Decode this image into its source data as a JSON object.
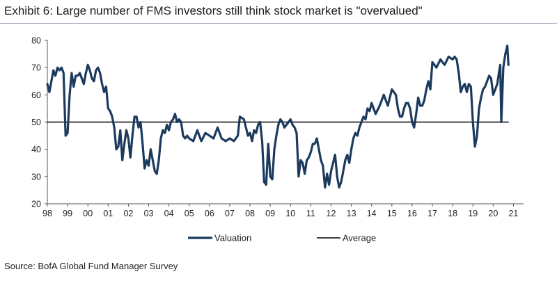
{
  "header": {
    "title": "Exhibit 6: Large number of FMS investors still think stock market is \"overvalued\""
  },
  "footer": {
    "source": "Source: BofA Global Fund Manager Survey"
  },
  "chart_data": {
    "type": "line",
    "title": "Exhibit 6: Large number of FMS investors still think stock market is \"overvalued\"",
    "xlabel": "",
    "ylabel": "",
    "xlim": [
      1998,
      2021.5
    ],
    "ylim": [
      20,
      80
    ],
    "y_ticks": [
      20,
      30,
      40,
      50,
      60,
      70,
      80
    ],
    "x_tick_labels": [
      "98",
      "99",
      "00",
      "01",
      "02",
      "03",
      "04",
      "05",
      "06",
      "07",
      "08",
      "09",
      "10",
      "11",
      "12",
      "13",
      "14",
      "15",
      "16",
      "17",
      "18",
      "19",
      "20",
      "21"
    ],
    "grid": false,
    "legend_position": "bottom",
    "colors": {
      "valuation": "#1c3a5e",
      "average": "#000000"
    },
    "series": [
      {
        "name": "Valuation",
        "x": [
          1998.0,
          1998.1,
          1998.2,
          1998.3,
          1998.4,
          1998.5,
          1998.6,
          1998.7,
          1998.8,
          1998.9,
          1999.0,
          1999.1,
          1999.2,
          1999.3,
          1999.4,
          1999.5,
          1999.6,
          1999.7,
          1999.8,
          1999.9,
          2000.0,
          2000.1,
          2000.2,
          2000.3,
          2000.4,
          2000.5,
          2000.6,
          2000.7,
          2000.8,
          2000.9,
          2001.0,
          2001.1,
          2001.2,
          2001.3,
          2001.4,
          2001.5,
          2001.6,
          2001.7,
          2001.8,
          2001.9,
          2002.0,
          2002.1,
          2002.2,
          2002.3,
          2002.4,
          2002.5,
          2002.6,
          2002.7,
          2002.8,
          2002.9,
          2003.0,
          2003.1,
          2003.2,
          2003.3,
          2003.4,
          2003.5,
          2003.6,
          2003.7,
          2003.8,
          2003.9,
          2004.0,
          2004.1,
          2004.2,
          2004.3,
          2004.4,
          2004.5,
          2004.6,
          2004.7,
          2004.8,
          2004.9,
          2005.0,
          2005.2,
          2005.4,
          2005.6,
          2005.8,
          2006.0,
          2006.2,
          2006.4,
          2006.6,
          2006.8,
          2007.0,
          2007.2,
          2007.4,
          2007.5,
          2007.7,
          2007.9,
          2008.0,
          2008.1,
          2008.2,
          2008.3,
          2008.4,
          2008.5,
          2008.6,
          2008.7,
          2008.8,
          2008.9,
          2009.0,
          2009.1,
          2009.2,
          2009.3,
          2009.4,
          2009.5,
          2009.6,
          2009.7,
          2009.8,
          2009.9,
          2010.0,
          2010.1,
          2010.2,
          2010.3,
          2010.4,
          2010.5,
          2010.6,
          2010.7,
          2010.8,
          2010.9,
          2011.0,
          2011.1,
          2011.2,
          2011.3,
          2011.4,
          2011.5,
          2011.6,
          2011.7,
          2011.8,
          2011.9,
          2012.0,
          2012.1,
          2012.2,
          2012.3,
          2012.4,
          2012.5,
          2012.6,
          2012.7,
          2012.8,
          2012.9,
          2013.0,
          2013.1,
          2013.2,
          2013.3,
          2013.4,
          2013.5,
          2013.6,
          2013.7,
          2013.8,
          2013.9,
          2014.0,
          2014.2,
          2014.4,
          2014.6,
          2014.8,
          2015.0,
          2015.1,
          2015.2,
          2015.3,
          2015.4,
          2015.5,
          2015.6,
          2015.7,
          2015.8,
          2015.9,
          2016.0,
          2016.1,
          2016.2,
          2016.3,
          2016.4,
          2016.5,
          2016.6,
          2016.7,
          2016.8,
          2016.9,
          2017.0,
          2017.2,
          2017.4,
          2017.6,
          2017.8,
          2018.0,
          2018.1,
          2018.2,
          2018.3,
          2018.4,
          2018.5,
          2018.6,
          2018.7,
          2018.8,
          2018.9,
          2019.0,
          2019.1,
          2019.2,
          2019.3,
          2019.4,
          2019.5,
          2019.6,
          2019.7,
          2019.8,
          2019.9,
          2020.0,
          2020.1,
          2020.2,
          2020.3,
          2020.35,
          2020.4,
          2020.5,
          2020.6,
          2020.7,
          2020.75
        ],
        "y": [
          64,
          61,
          65,
          69,
          67,
          70,
          69,
          70,
          68,
          45,
          46,
          60,
          68,
          63,
          67,
          67,
          68,
          66,
          64,
          68,
          71,
          69,
          66,
          65,
          69,
          70,
          68,
          64,
          61,
          63,
          55,
          54,
          52,
          48,
          40,
          41,
          47,
          36,
          42,
          47,
          44,
          37,
          45,
          52,
          52,
          48,
          50,
          42,
          33,
          36,
          34,
          40,
          36,
          32,
          31,
          36,
          44,
          47,
          46,
          49,
          47,
          50,
          51,
          53,
          50,
          51,
          50,
          45,
          44,
          45,
          44,
          43,
          47,
          43,
          46,
          45,
          44,
          48,
          44,
          43,
          44,
          43,
          45,
          52,
          51,
          45,
          46,
          43,
          47,
          46,
          49,
          50,
          43,
          28,
          27,
          42,
          30,
          29,
          40,
          45,
          49,
          51,
          50,
          48,
          49,
          50,
          51,
          49,
          48,
          46,
          30,
          36,
          35,
          31,
          36,
          37,
          39,
          42,
          42,
          44,
          40,
          36,
          34,
          26,
          31,
          27,
          32,
          35,
          38,
          30,
          26,
          28,
          32,
          36,
          38,
          35,
          40,
          44,
          46,
          45,
          48,
          50,
          52,
          51,
          55,
          54,
          57,
          53,
          56,
          60,
          56,
          62,
          61,
          60,
          55,
          52,
          52,
          55,
          57,
          57,
          55,
          50,
          48,
          53,
          59,
          56,
          56,
          58,
          62,
          65,
          62,
          72,
          70,
          73,
          71,
          74,
          73,
          74,
          73,
          68,
          61,
          63,
          64,
          61,
          64,
          63,
          50,
          41,
          45,
          55,
          59,
          62,
          63,
          65,
          67,
          66,
          60,
          62,
          64,
          69,
          71,
          50,
          70,
          75,
          78,
          71
        ]
      },
      {
        "name": "Average",
        "x": [
          1998.0,
          2020.75
        ],
        "y": [
          50,
          50
        ]
      }
    ]
  }
}
